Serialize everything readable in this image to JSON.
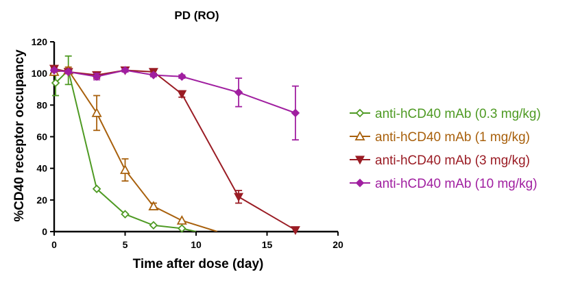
{
  "chart_data": {
    "type": "line",
    "title": "PD (RO)",
    "xlabel": "Time after dose (day)",
    "ylabel": "%CD40 receptor occupancy",
    "xlim": [
      0,
      20
    ],
    "ylim": [
      0,
      120
    ],
    "xticks": [
      "0",
      "5",
      "10",
      "15",
      "20"
    ],
    "yticks": [
      "0",
      "20",
      "40",
      "60",
      "80",
      "100",
      "120"
    ],
    "grid": false,
    "legend_position": "right",
    "series": [
      {
        "name": "anti-hCD40 mAb (0.3 mg/kg)",
        "color": "#4e9a23",
        "marker": "diamond-open",
        "points": [
          {
            "x": 0.1,
            "y": 94,
            "err": 8
          },
          {
            "x": 1,
            "y": 102,
            "err": 9
          },
          {
            "x": 3,
            "y": 27,
            "err": 0
          },
          {
            "x": 5,
            "y": 11,
            "err": 0
          },
          {
            "x": 7,
            "y": 4,
            "err": 0
          },
          {
            "x": 9,
            "y": 2,
            "err": 0
          },
          {
            "x": 10,
            "y": 0,
            "err": 0
          }
        ]
      },
      {
        "name": "anti-hCD40 mAb (1 mg/kg)",
        "color": "#a8600c",
        "marker": "triangle-up-open",
        "points": [
          {
            "x": 0,
            "y": 101,
            "err": 1
          },
          {
            "x": 1,
            "y": 102,
            "err": 2
          },
          {
            "x": 3,
            "y": 75,
            "err": 11
          },
          {
            "x": 5,
            "y": 39,
            "err": 7
          },
          {
            "x": 7,
            "y": 16,
            "err": 2
          },
          {
            "x": 9,
            "y": 7,
            "err": 0
          },
          {
            "x": 11.5,
            "y": 0,
            "err": 0
          }
        ]
      },
      {
        "name": "anti-hCD40 mAb (3 mg/kg)",
        "color": "#9a1c24",
        "marker": "triangle-down",
        "points": [
          {
            "x": 0,
            "y": 103,
            "err": 1
          },
          {
            "x": 1,
            "y": 101,
            "err": 1
          },
          {
            "x": 3,
            "y": 99,
            "err": 2
          },
          {
            "x": 5,
            "y": 102,
            "err": 1
          },
          {
            "x": 7,
            "y": 101,
            "err": 1
          },
          {
            "x": 9,
            "y": 87,
            "err": 2
          },
          {
            "x": 13,
            "y": 22,
            "err": 4
          },
          {
            "x": 17,
            "y": 1,
            "err": 0
          }
        ]
      },
      {
        "name": "anti-hCD40 mAb (10 mg/kg)",
        "color": "#a01fa0",
        "marker": "diamond",
        "points": [
          {
            "x": 0,
            "y": 102,
            "err": 1
          },
          {
            "x": 1,
            "y": 101,
            "err": 1
          },
          {
            "x": 3,
            "y": 98,
            "err": 2
          },
          {
            "x": 5,
            "y": 102,
            "err": 1
          },
          {
            "x": 7,
            "y": 99,
            "err": 1
          },
          {
            "x": 9,
            "y": 98,
            "err": 1
          },
          {
            "x": 13,
            "y": 88,
            "err": 9
          },
          {
            "x": 17,
            "y": 75,
            "err": 17
          }
        ]
      }
    ]
  }
}
